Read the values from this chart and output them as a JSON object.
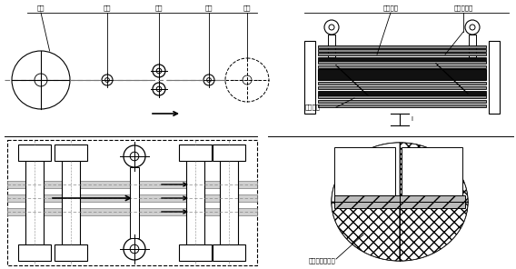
{
  "bg_color": "#ffffff",
  "lc": "#000000",
  "gc": "#777777",
  "dc": "#888888",
  "labels_top": [
    "开卷",
    "转向",
    "分切",
    "转向",
    "卷取"
  ],
  "labels_right": [
    "分切上刀",
    "分切后铝卷"
  ],
  "label_lower_blade": "分切下刀",
  "label_burr": "铝带边波及毛刺",
  "figsize": [
    5.68,
    2.96
  ],
  "dpi": 100
}
